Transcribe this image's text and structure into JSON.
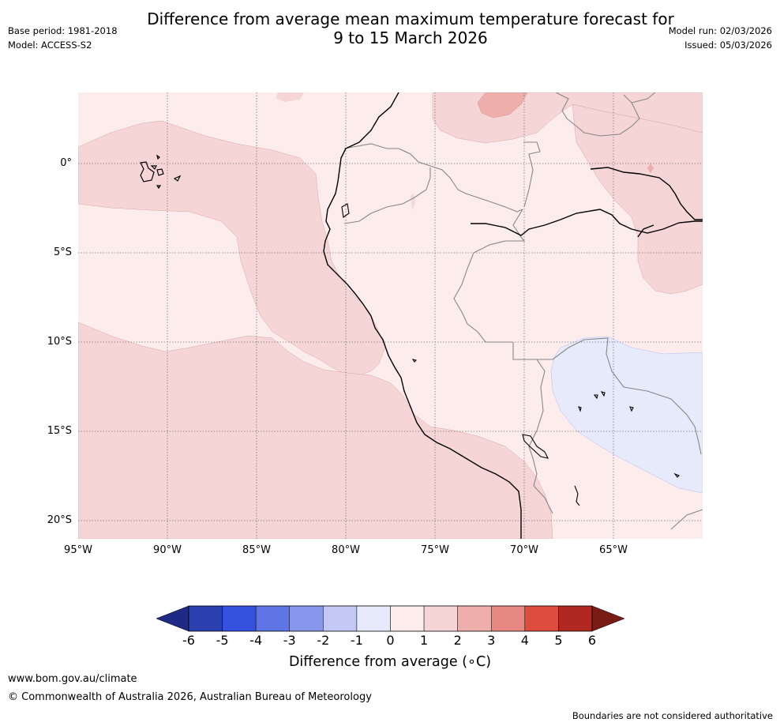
{
  "title": "Difference from average mean maximum temperature forecast for\n9 to 15 March 2026",
  "title_line1": "Difference from average mean maximum temperature forecast for",
  "title_line2": "9 to 15 March 2026",
  "base_period": "Base period: 1981-2018",
  "model": "Model: ACCESS-S2",
  "model_run": "Model run: 02/03/2026",
  "issued": "Issued: 05/03/2026",
  "map": {
    "lat_labels": [
      "0°",
      "5°S",
      "10°S",
      "15°S",
      "20°S"
    ],
    "lon_labels": [
      "95°W",
      "90°W",
      "85°W",
      "80°W",
      "75°W",
      "70°W",
      "65°W"
    ],
    "lat_values": [
      0,
      -5,
      -10,
      -15,
      -20
    ],
    "lon_values": [
      -95,
      -90,
      -85,
      -80,
      -75,
      -70,
      -65
    ]
  },
  "colorbar": {
    "ticks": [
      "-6",
      "-5",
      "-4",
      "-3",
      "-2",
      "-1",
      "0",
      "1",
      "2",
      "3",
      "4",
      "5",
      "6"
    ],
    "title": "Difference from average (∘C)",
    "colors": [
      "#1f2a87",
      "#2a40b0",
      "#3551e0",
      "#5f75e6",
      "#8796ea",
      "#c3c9f4",
      "#e7eafb",
      "#fcecec",
      "#f5d5d5",
      "#edaeac",
      "#e78882",
      "#de4c3e",
      "#b0281f",
      "#7a1b15"
    ]
  },
  "footer": {
    "website": "www.bom.gov.au/climate",
    "copyright": "© Commonwealth of Australia 2026, Australian Bureau of Meteorology",
    "disclaimer": "Boundaries are not considered authoritative"
  }
}
